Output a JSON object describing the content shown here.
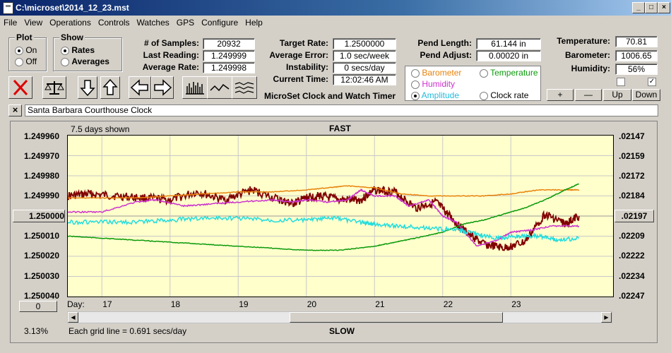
{
  "window": {
    "title": "C:\\microset\\2014_12_23.mst",
    "minimize": "_",
    "maximize": "□",
    "close": "×"
  },
  "menu": [
    "File",
    "View",
    "Operations",
    "Controls",
    "Watches",
    "GPS",
    "Configure",
    "Help"
  ],
  "plot_group": {
    "title": "Plot",
    "on": "On",
    "off": "Off",
    "selected": "On"
  },
  "show_group": {
    "title": "Show",
    "rates": "Rates",
    "averages": "Averages",
    "selected": "Rates"
  },
  "stats": {
    "samples_label": "# of Samples:",
    "samples": "20932",
    "last_label": "Last Reading:",
    "last": "1.249999",
    "avg_label": "Average Rate:",
    "avg": "1.249998",
    "target_label": "Target Rate:",
    "target": "1.2500000",
    "avgerr_label": "Average Error:",
    "avgerr": "1.0 sec/week",
    "instab_label": "Instability:",
    "instab": "0 secs/day",
    "time_label": "Current Time:",
    "time": "12:02:46 AM",
    "pend_label": "Pend Length:",
    "pend": "61.144 in",
    "padj_label": "Pend Adjust:",
    "padj": "0.00020 in",
    "temp_label": "Temperature:",
    "temp": "70.81",
    "baro_label": "Barometer:",
    "baro": "1006.65",
    "hum_label": "Humidity:",
    "hum": "56%"
  },
  "sensors": {
    "barometer": "Barometer",
    "temperature": "Temperature",
    "humidity": "Humidity",
    "amplitude": "Amplitude",
    "clockrate": "Clock rate",
    "selected": "Amplitude",
    "colors": {
      "barometer": "#e8820c",
      "temperature": "#0a9a0a",
      "humidity": "#cc33cc",
      "amplitude": "#22dddd"
    }
  },
  "app_caption": "MicroSet Clock and Watch Timer",
  "scale_buttons": {
    "plus": "+",
    "minus": "—",
    "up": "Up",
    "down": "Down"
  },
  "toolbar_icons": [
    "delete-icon",
    "balance-icon",
    "arrow-down-icon",
    "arrow-up-icon",
    "arrow-left-icon",
    "arrow-right-icon",
    "bars-icon",
    "wave-icon",
    "multiwave-icon"
  ],
  "clock_name": "Santa Barbara Courthouse Clock",
  "clear_label": "×",
  "chart": {
    "days_shown": "7.5 days shown",
    "fast": "FAST",
    "slow": "SLOW",
    "grid_note": "Each grid line = 0.691 secs/day",
    "percent": "3.13%",
    "center_button": "1.250000",
    "right_button": ".02197",
    "bottom_button": "0",
    "day_prefix": "Day:"
  },
  "chart_data": {
    "type": "line",
    "title": "FAST",
    "y_left_ticks": [
      "1.249960",
      "1.249970",
      "1.249980",
      "1.249990",
      "1.250000",
      "1.250010",
      "1.250020",
      "1.250030",
      "1.250040"
    ],
    "y_right_ticks": [
      ".02147",
      ".02159",
      ".02172",
      ".02184",
      ".02197",
      ".02209",
      ".02222",
      ".02234",
      ".02247"
    ],
    "x_ticks": [
      "17",
      "18",
      "19",
      "20",
      "21",
      "22",
      "23"
    ],
    "ylim": [
      1.24996,
      1.25004
    ],
    "y_inverted": true,
    "xlim": [
      16.5,
      24.5
    ],
    "series": [
      {
        "name": "Rates",
        "color": "#800000",
        "x": [
          16.5,
          16.8,
          17.2,
          17.6,
          18.0,
          18.4,
          18.8,
          19.2,
          19.6,
          19.8,
          20.0,
          20.2,
          20.5,
          20.8,
          21.0,
          21.3,
          21.6,
          21.9,
          22.1,
          22.3,
          22.6,
          22.9,
          23.2,
          23.5,
          23.8,
          24.0
        ],
        "y": [
          1.24999,
          1.249989,
          1.24999,
          1.249991,
          1.249992,
          1.249988,
          1.249992,
          1.249987,
          1.249992,
          1.249994,
          1.249991,
          1.24999,
          1.249992,
          1.249992,
          1.249987,
          1.249988,
          1.249996,
          1.249993,
          1.25,
          1.250007,
          1.250014,
          1.250016,
          1.250013,
          1.249999,
          1.250004,
          1.25
        ]
      },
      {
        "name": "Barometer",
        "color": "#e8820c",
        "x": [
          16.5,
          17.0,
          17.5,
          18.0,
          18.5,
          19.0,
          19.5,
          20.0,
          20.3,
          20.6,
          21.0,
          21.4,
          21.8,
          22.2,
          22.6,
          23.0,
          23.4,
          23.8,
          24.0
        ],
        "y": [
          1.249991,
          1.249991,
          1.249991,
          1.24999,
          1.249989,
          1.249988,
          1.249988,
          1.249987,
          1.249986,
          1.249985,
          1.249986,
          1.249989,
          1.24999,
          1.24999,
          1.24999,
          1.249989,
          1.249987,
          1.249987,
          1.249987
        ]
      },
      {
        "name": "Humidity",
        "color": "#cc33cc",
        "x": [
          16.5,
          17.0,
          17.5,
          17.8,
          18.2,
          18.6,
          19.0,
          19.5,
          19.8,
          20.0,
          20.3,
          20.6,
          20.8,
          21.0,
          21.3,
          21.5,
          21.8,
          22.0,
          22.2,
          22.5,
          22.8,
          23.0,
          23.3,
          23.6,
          24.0
        ],
        "y": [
          1.249998,
          1.249998,
          1.249993,
          1.249992,
          1.249995,
          1.249994,
          1.249993,
          1.249992,
          1.249993,
          1.249992,
          1.249993,
          1.249992,
          1.249987,
          1.24999,
          1.24999,
          1.249995,
          1.249992,
          1.25,
          1.250003,
          1.250015,
          1.250012,
          1.250008,
          1.250007,
          1.250005,
          1.250005
        ]
      },
      {
        "name": "Temperature",
        "color": "#0a9a0a",
        "x": [
          16.5,
          17.0,
          17.5,
          18.0,
          18.5,
          19.0,
          19.5,
          20.0,
          20.5,
          21.0,
          21.3,
          21.6,
          22.0,
          22.3,
          22.6,
          22.9,
          23.2,
          23.5,
          23.8,
          24.0
        ],
        "y": [
          1.25001,
          1.250011,
          1.250012,
          1.250013,
          1.250014,
          1.250015,
          1.250016,
          1.250017,
          1.250017,
          1.250015,
          1.250013,
          1.250011,
          1.250008,
          1.250004,
          1.250002,
          1.249999,
          1.249996,
          1.249992,
          1.249987,
          1.249984
        ]
      },
      {
        "name": "Amplitude",
        "color": "#22dddd",
        "x": [
          16.5,
          17.0,
          17.5,
          18.0,
          18.5,
          19.0,
          19.5,
          20.0,
          20.4,
          20.8,
          21.0,
          21.4,
          21.8,
          22.2,
          22.5,
          22.8,
          23.1,
          23.4,
          23.7,
          24.0
        ],
        "y": [
          1.250003,
          1.250003,
          1.250003,
          1.250002,
          1.250001,
          1.250001,
          1.250002,
          1.250002,
          1.250001,
          1.250003,
          1.250004,
          1.250005,
          1.250006,
          1.250007,
          1.250009,
          1.250011,
          1.25001,
          1.25001,
          1.250012,
          1.250011
        ]
      }
    ]
  }
}
